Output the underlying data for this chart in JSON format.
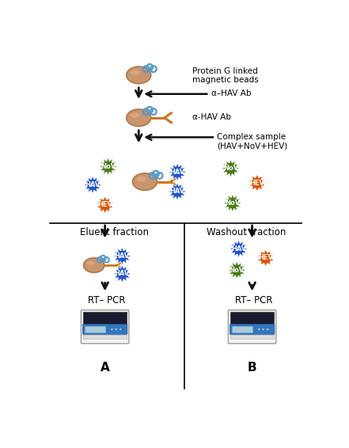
{
  "background_color": "#ffffff",
  "bead_color": "#c8956c",
  "bead_outline": "#b07848",
  "antibody_color": "#cc7722",
  "HAV_color": "#2255cc",
  "NoV_color": "#4a7a1a",
  "HEV_color": "#dd5500",
  "curl_color": "#5599cc",
  "arrow_color": "#111111",
  "labels": {
    "protein_g": "Protein G linked\nmagnetic beads",
    "alpha_hav_ab1": "α–HAV Ab",
    "alpha_hav_ab2": "α-HAV Ab",
    "complex_sample": "Complex sample\n(HAV+NoV+HEV)",
    "eluent_fraction": "Eluent fraction",
    "washout_fraction": "Washout fraction",
    "rt_pcr": "RT– PCR",
    "panel_A": "A",
    "panel_B": "B"
  },
  "figsize": [
    4.41,
    5.66
  ],
  "dpi": 100
}
